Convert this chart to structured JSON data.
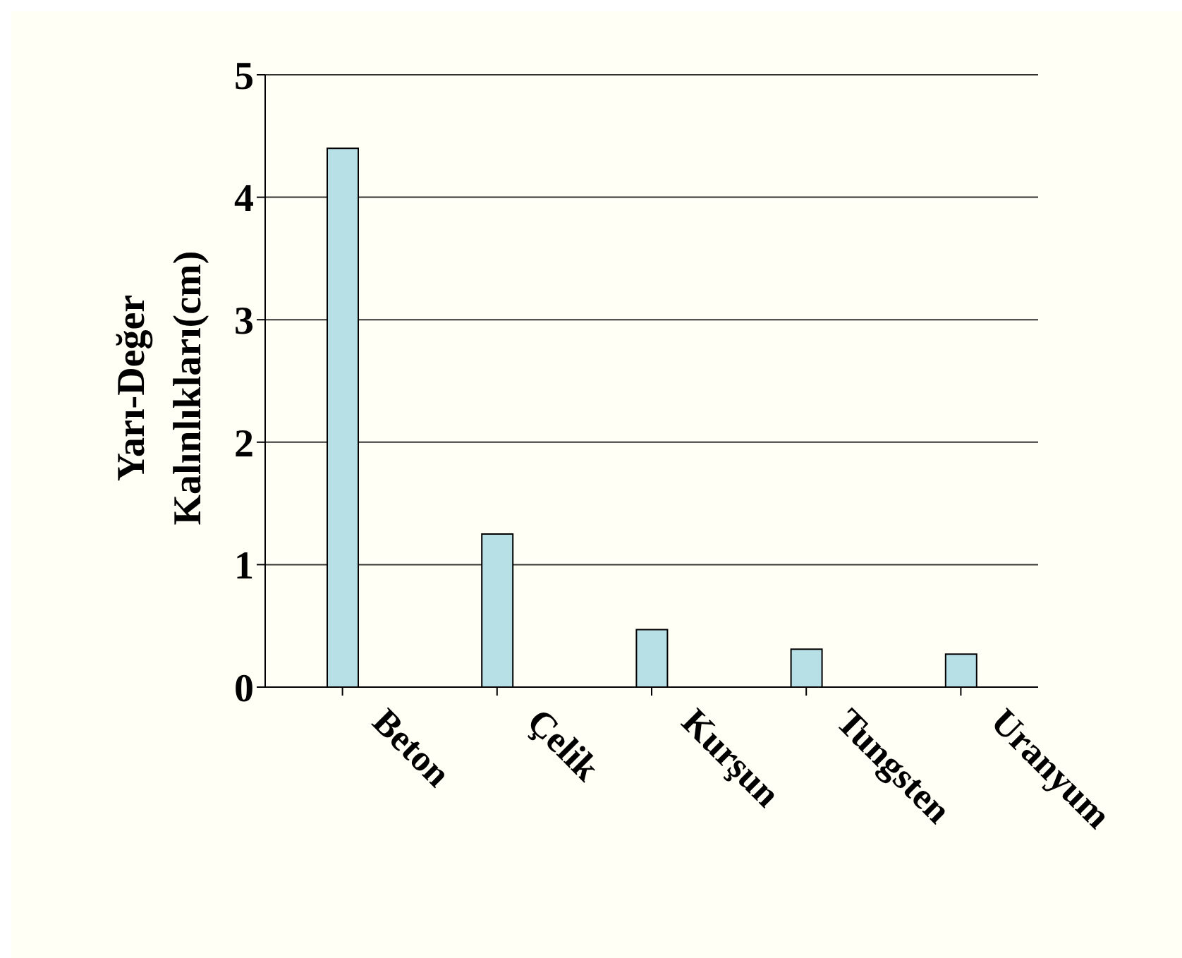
{
  "chart_data": {
    "type": "bar",
    "ylabel": "Yarı-Değer Kalınlıkları(cm)",
    "categories": [
      "Beton",
      "Çelik",
      "Kurşun",
      "Tungsten",
      "Uranyum"
    ],
    "values": [
      4.4,
      1.25,
      0.47,
      0.31,
      0.27
    ],
    "color": "#b7dfe6",
    "ylim": [
      0,
      5
    ],
    "yticks": [
      0,
      1,
      2,
      3,
      4,
      5
    ],
    "grid": "y"
  }
}
